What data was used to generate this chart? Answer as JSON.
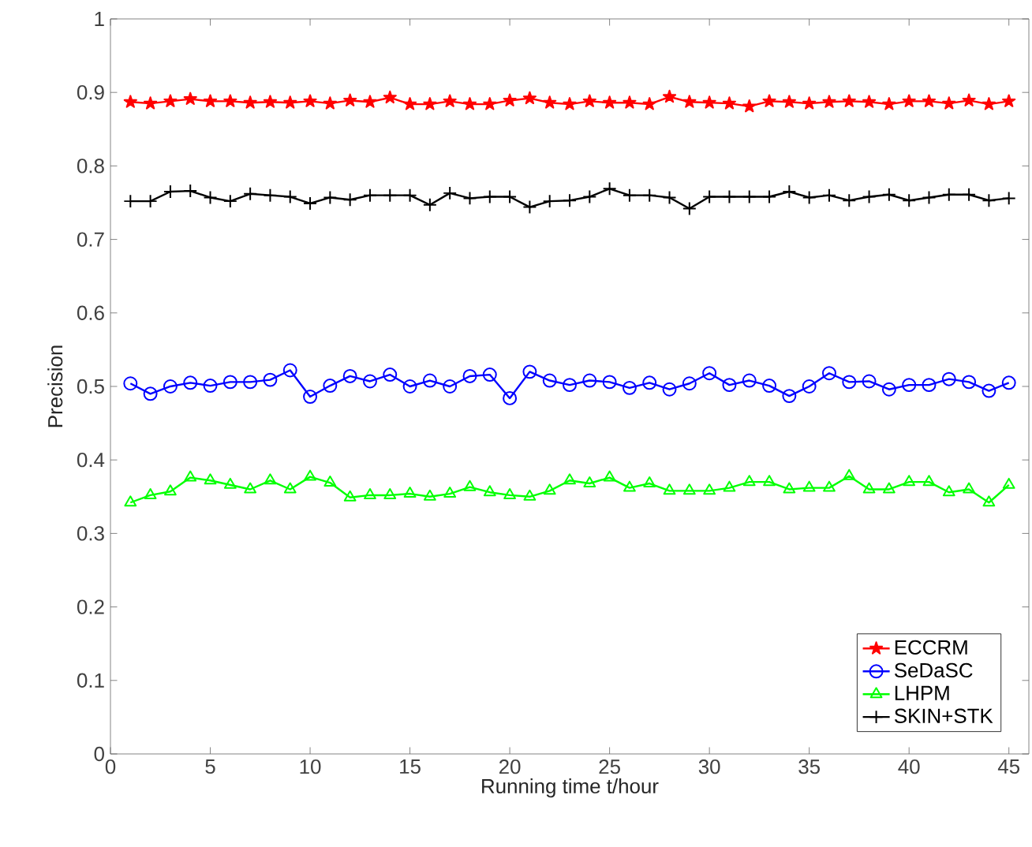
{
  "chart_data": {
    "type": "line",
    "xlabel": "Running time t/hour",
    "ylabel": "Precision",
    "x": [
      1,
      2,
      3,
      4,
      5,
      6,
      7,
      8,
      9,
      10,
      11,
      12,
      13,
      14,
      15,
      16,
      17,
      18,
      19,
      20,
      21,
      22,
      23,
      24,
      25,
      26,
      27,
      28,
      29,
      30,
      31,
      32,
      33,
      34,
      35,
      36,
      37,
      38,
      39,
      40,
      41,
      42,
      43,
      44,
      45
    ],
    "series": [
      {
        "name": "ECCRM",
        "color": "#ff0000",
        "marker": "star",
        "values": [
          0.887,
          0.885,
          0.888,
          0.891,
          0.888,
          0.888,
          0.886,
          0.887,
          0.886,
          0.888,
          0.885,
          0.889,
          0.887,
          0.893,
          0.884,
          0.884,
          0.888,
          0.884,
          0.884,
          0.889,
          0.892,
          0.886,
          0.884,
          0.888,
          0.886,
          0.886,
          0.884,
          0.894,
          0.887,
          0.886,
          0.885,
          0.881,
          0.888,
          0.887,
          0.885,
          0.887,
          0.888,
          0.887,
          0.884,
          0.888,
          0.888,
          0.885,
          0.889,
          0.884,
          0.888
        ]
      },
      {
        "name": "SeDaSC",
        "color": "#0000ff",
        "marker": "circle",
        "values": [
          0.504,
          0.49,
          0.5,
          0.505,
          0.501,
          0.506,
          0.506,
          0.509,
          0.522,
          0.486,
          0.501,
          0.514,
          0.507,
          0.516,
          0.5,
          0.508,
          0.5,
          0.514,
          0.516,
          0.484,
          0.52,
          0.508,
          0.502,
          0.508,
          0.506,
          0.498,
          0.505,
          0.496,
          0.504,
          0.518,
          0.502,
          0.508,
          0.501,
          0.487,
          0.5,
          0.518,
          0.506,
          0.507,
          0.496,
          0.502,
          0.502,
          0.51,
          0.506,
          0.494,
          0.505
        ]
      },
      {
        "name": "LHPM",
        "color": "#00ff00",
        "marker": "triangle",
        "values": [
          0.342,
          0.352,
          0.357,
          0.376,
          0.372,
          0.366,
          0.36,
          0.372,
          0.36,
          0.377,
          0.369,
          0.349,
          0.352,
          0.352,
          0.354,
          0.35,
          0.354,
          0.363,
          0.356,
          0.352,
          0.35,
          0.358,
          0.372,
          0.368,
          0.376,
          0.362,
          0.368,
          0.358,
          0.358,
          0.358,
          0.362,
          0.37,
          0.37,
          0.36,
          0.362,
          0.362,
          0.378,
          0.36,
          0.36,
          0.37,
          0.37,
          0.356,
          0.36,
          0.342,
          0.366
        ]
      },
      {
        "name": "SKIN+STK",
        "color": "#000000",
        "marker": "cross",
        "values": [
          0.752,
          0.752,
          0.765,
          0.766,
          0.757,
          0.752,
          0.762,
          0.76,
          0.758,
          0.749,
          0.757,
          0.754,
          0.76,
          0.76,
          0.76,
          0.747,
          0.763,
          0.756,
          0.758,
          0.758,
          0.744,
          0.752,
          0.753,
          0.758,
          0.769,
          0.76,
          0.76,
          0.757,
          0.742,
          0.758,
          0.758,
          0.758,
          0.758,
          0.765,
          0.757,
          0.76,
          0.753,
          0.758,
          0.761,
          0.753,
          0.757,
          0.761,
          0.761,
          0.753,
          0.756
        ]
      }
    ],
    "xlim": [
      0,
      46
    ],
    "ylim": [
      0,
      1
    ],
    "xticks": [
      0,
      5,
      10,
      15,
      20,
      25,
      30,
      35,
      40,
      45
    ],
    "yticks": [
      0,
      0.1,
      0.2,
      0.3,
      0.4,
      0.5,
      0.6,
      0.7,
      0.8,
      0.9,
      1
    ],
    "grid": false,
    "legend": "bottom right",
    "line_style": "solid"
  }
}
